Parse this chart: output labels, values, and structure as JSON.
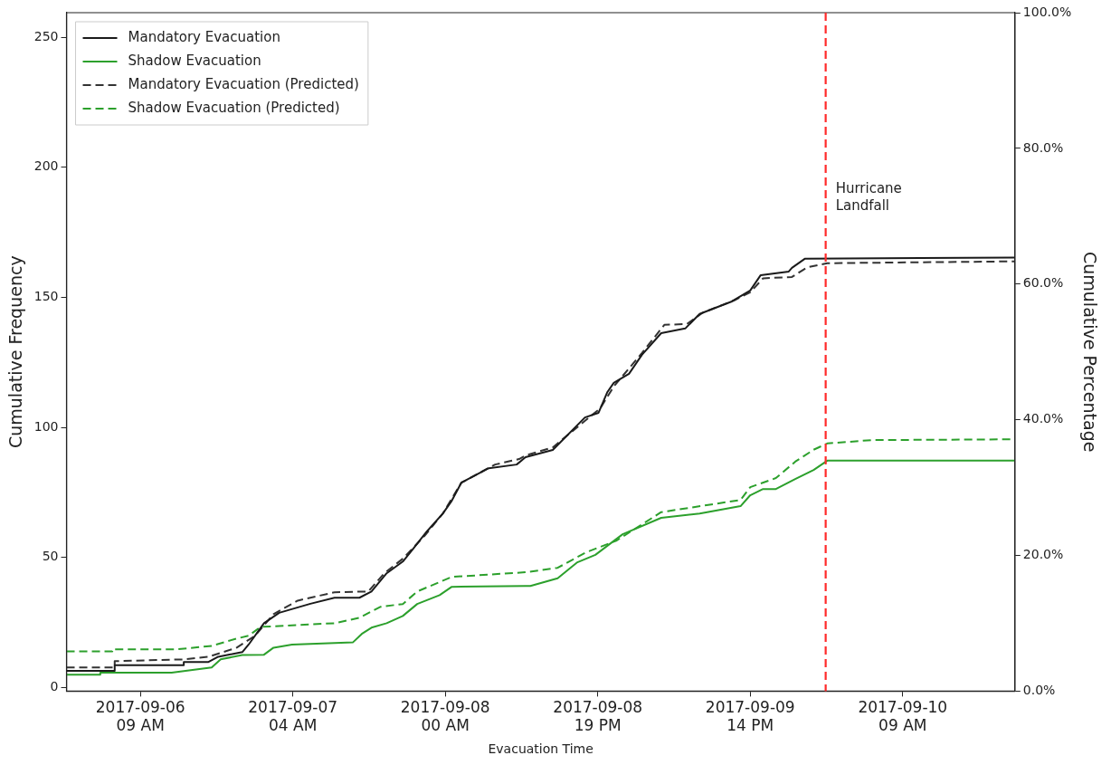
{
  "chart_data": {
    "type": "line",
    "xlabel": "Evacuation Time",
    "ylabel": "Cumulative Frequency",
    "y2label": "Cumulative Percentage",
    "xlim": [
      "2017-09-06T00:27",
      "2017-09-10T23:53"
    ],
    "xticks": [
      {
        "value": "2017-09-06T09:45",
        "label": "2017-09-06\n09 AM"
      },
      {
        "value": "2017-09-07T04:57",
        "label": "2017-09-07\n04 AM"
      },
      {
        "value": "2017-09-08T00:09",
        "label": "2017-09-08\n00 AM"
      },
      {
        "value": "2017-09-08T19:21",
        "label": "2017-09-08\n19 PM"
      },
      {
        "value": "2017-09-09T14:33",
        "label": "2017-09-09\n14 PM"
      },
      {
        "value": "2017-09-10T09:45",
        "label": "2017-09-10\n09 AM"
      }
    ],
    "ylim": [
      -1.4,
      259.4
    ],
    "yticks": [
      0,
      50,
      100,
      150,
      200,
      250
    ],
    "y2lim": [
      0,
      100
    ],
    "y2ticks": [
      {
        "value": 0,
        "label": "0.0%"
      },
      {
        "value": 20,
        "label": "20.0%"
      },
      {
        "value": 40,
        "label": "40.0%"
      },
      {
        "value": 60,
        "label": "60.0%"
      },
      {
        "value": 80,
        "label": "80.0%"
      },
      {
        "value": 100,
        "label": "100.0%"
      }
    ],
    "grid": false,
    "legend": "top left",
    "marker": "none",
    "ref_lines": [
      {
        "axis": "x",
        "value": "2017-09-10T00:03",
        "label": "Hurricane\nLandfall",
        "color": "#ff2a2a",
        "line_style": "dashed"
      }
    ],
    "series": [
      {
        "name": "Mandatory Evacuation",
        "color": "#1a1a1a",
        "line_style": "solid",
        "x": [
          "2017-09-06T00:27",
          "2017-09-06T06:31",
          "2017-09-06T06:31",
          "2017-09-06T15:13",
          "2017-09-06T15:13",
          "2017-09-06T18:20",
          "2017-09-06T19:33",
          "2017-09-06T22:35",
          "2017-09-06T23:23",
          "2017-09-07T01:19",
          "2017-09-07T03:14",
          "2017-09-07T07:10",
          "2017-09-07T10:12",
          "2017-09-07T13:20",
          "2017-09-07T14:51",
          "2017-09-07T16:46",
          "2017-09-07T18:48",
          "2017-09-07T20:01",
          "2017-09-07T21:50",
          "2017-09-07T23:51",
          "2017-09-08T00:58",
          "2017-09-08T02:10",
          "2017-09-08T05:37",
          "2017-09-08T09:08",
          "2017-09-08T10:15",
          "2017-09-08T13:41",
          "2017-09-08T17:44",
          "2017-09-08T19:27",
          "2017-09-08T20:34",
          "2017-09-08T21:22",
          "2017-09-08T23:17",
          "2017-09-09T00:55",
          "2017-09-09T03:20",
          "2017-09-09T06:22",
          "2017-09-09T08:11",
          "2017-09-09T12:14",
          "2017-09-09T14:33",
          "2017-09-09T15:52",
          "2017-09-09T19:24",
          "2017-09-09T19:48",
          "2017-09-09T21:25",
          "2017-09-10T23:53"
        ],
        "values": [
          6.4,
          6.4,
          8.6,
          8.6,
          9.8,
          9.8,
          11.8,
          13.6,
          16.5,
          24.7,
          28.7,
          32.2,
          34.5,
          34.5,
          36.9,
          43.9,
          48.4,
          53,
          60,
          66.9,
          71.8,
          78.7,
          84.3,
          85.7,
          88.5,
          91.3,
          103.8,
          105.6,
          113.6,
          117.1,
          120.6,
          127.9,
          136.2,
          138,
          143.6,
          148.4,
          152.6,
          158.5,
          159.9,
          161.3,
          164.8,
          165.3
        ]
      },
      {
        "name": "Shadow Evacuation",
        "color": "#2ca02c",
        "line_style": "solid",
        "x": [
          "2017-09-06T00:27",
          "2017-09-06T04:42",
          "2017-09-06T04:42",
          "2017-09-06T13:41",
          "2017-09-06T18:44",
          "2017-09-06T19:52",
          "2017-09-06T22:35",
          "2017-09-07T01:19",
          "2017-09-07T02:31",
          "2017-09-07T04:51",
          "2017-09-07T12:32",
          "2017-09-07T13:38",
          "2017-09-07T14:51",
          "2017-09-07T16:46",
          "2017-09-07T18:48",
          "2017-09-07T20:37",
          "2017-09-07T23:26",
          "2017-09-08T00:58",
          "2017-09-08T10:15",
          "2017-09-08T10:52",
          "2017-09-08T14:18",
          "2017-09-08T16:43",
          "2017-09-08T19:03",
          "2017-09-08T22:29",
          "2017-09-09T03:20",
          "2017-09-09T08:11",
          "2017-09-09T13:20",
          "2017-09-09T14:33",
          "2017-09-09T16:10",
          "2017-09-09T17:47",
          "2017-09-09T20:13",
          "2017-09-09T22:32",
          "2017-09-10T00:15",
          "2017-09-10T23:53"
        ],
        "values": [
          4.9,
          4.9,
          5.7,
          5.7,
          7.7,
          10.8,
          12.5,
          12.6,
          15.3,
          16.5,
          17.4,
          20.6,
          23,
          24.7,
          27.5,
          32.1,
          35.5,
          38.7,
          39,
          39,
          42,
          48,
          51,
          58.9,
          65.2,
          66.9,
          69.7,
          73.9,
          76.3,
          76.3,
          80.1,
          83.6,
          87.2,
          87.2
        ]
      },
      {
        "name": "Mandatory Evacuation (Predicted)",
        "color": "#333333",
        "line_style": "dashed",
        "x": [
          "2017-09-06T00:27",
          "2017-09-06T06:31",
          "2017-09-06T06:31",
          "2017-09-06T15:13",
          "2017-09-06T18:20",
          "2017-09-06T21:53",
          "2017-09-07T00:12",
          "2017-09-07T02:31",
          "2017-09-07T05:34",
          "2017-09-07T10:12",
          "2017-09-07T14:27",
          "2017-09-07T16:28",
          "2017-09-07T18:48",
          "2017-09-07T21:31",
          "2017-09-07T23:51",
          "2017-09-08T02:10",
          "2017-09-08T06:25",
          "2017-09-08T09:27",
          "2017-09-08T10:15",
          "2017-09-08T13:41",
          "2017-09-08T19:39",
          "2017-09-08T21:22",
          "2017-09-09T00:55",
          "2017-09-09T03:44",
          "2017-09-09T06:34",
          "2017-09-09T08:35",
          "2017-09-09T12:32",
          "2017-09-09T14:33",
          "2017-09-09T16:10",
          "2017-09-09T19:48",
          "2017-09-09T21:43",
          "2017-09-10T00:15",
          "2017-09-10T23:53"
        ],
        "values": [
          7.7,
          7.7,
          10.1,
          10.8,
          11.8,
          15.3,
          19.9,
          28.2,
          33.4,
          36.6,
          36.9,
          43.9,
          49.5,
          58.2,
          66.9,
          78.7,
          85.7,
          87.8,
          89.2,
          92.3,
          107.3,
          115.7,
          128.6,
          139.4,
          139.7,
          144.1,
          148.8,
          151.9,
          157.3,
          157.8,
          161.5,
          163.1,
          163.8
        ]
      },
      {
        "name": "Shadow Evacuation (Predicted)",
        "color": "#2ca02c",
        "line_style": "dashed",
        "x": [
          "2017-09-06T00:27",
          "2017-09-06T06:13",
          "2017-09-06T06:13",
          "2017-09-06T14:24",
          "2017-09-06T18:44",
          "2017-09-06T21:53",
          "2017-09-06T23:23",
          "2017-09-07T00:55",
          "2017-09-07T10:12",
          "2017-09-07T13:20",
          "2017-09-07T15:58",
          "2017-09-07T18:48",
          "2017-09-07T20:37",
          "2017-09-08T00:58",
          "2017-09-08T10:15",
          "2017-09-08T14:18",
          "2017-09-08T17:50",
          "2017-09-08T21:40",
          "2017-09-09T03:20",
          "2017-09-09T13:20",
          "2017-09-09T14:33",
          "2017-09-09T17:47",
          "2017-09-09T20:13",
          "2017-09-09T22:32",
          "2017-09-10T00:15",
          "2017-09-10T05:49",
          "2017-09-10T23:53"
        ],
        "values": [
          13.9,
          13.9,
          14.7,
          14.7,
          16,
          18.8,
          19.9,
          23.3,
          24.7,
          26.8,
          31,
          32.1,
          36.9,
          42.5,
          44.3,
          46,
          51.9,
          56.4,
          67.4,
          72.1,
          77,
          80.5,
          86.8,
          91.4,
          93.8,
          95.1,
          95.4
        ]
      }
    ]
  }
}
